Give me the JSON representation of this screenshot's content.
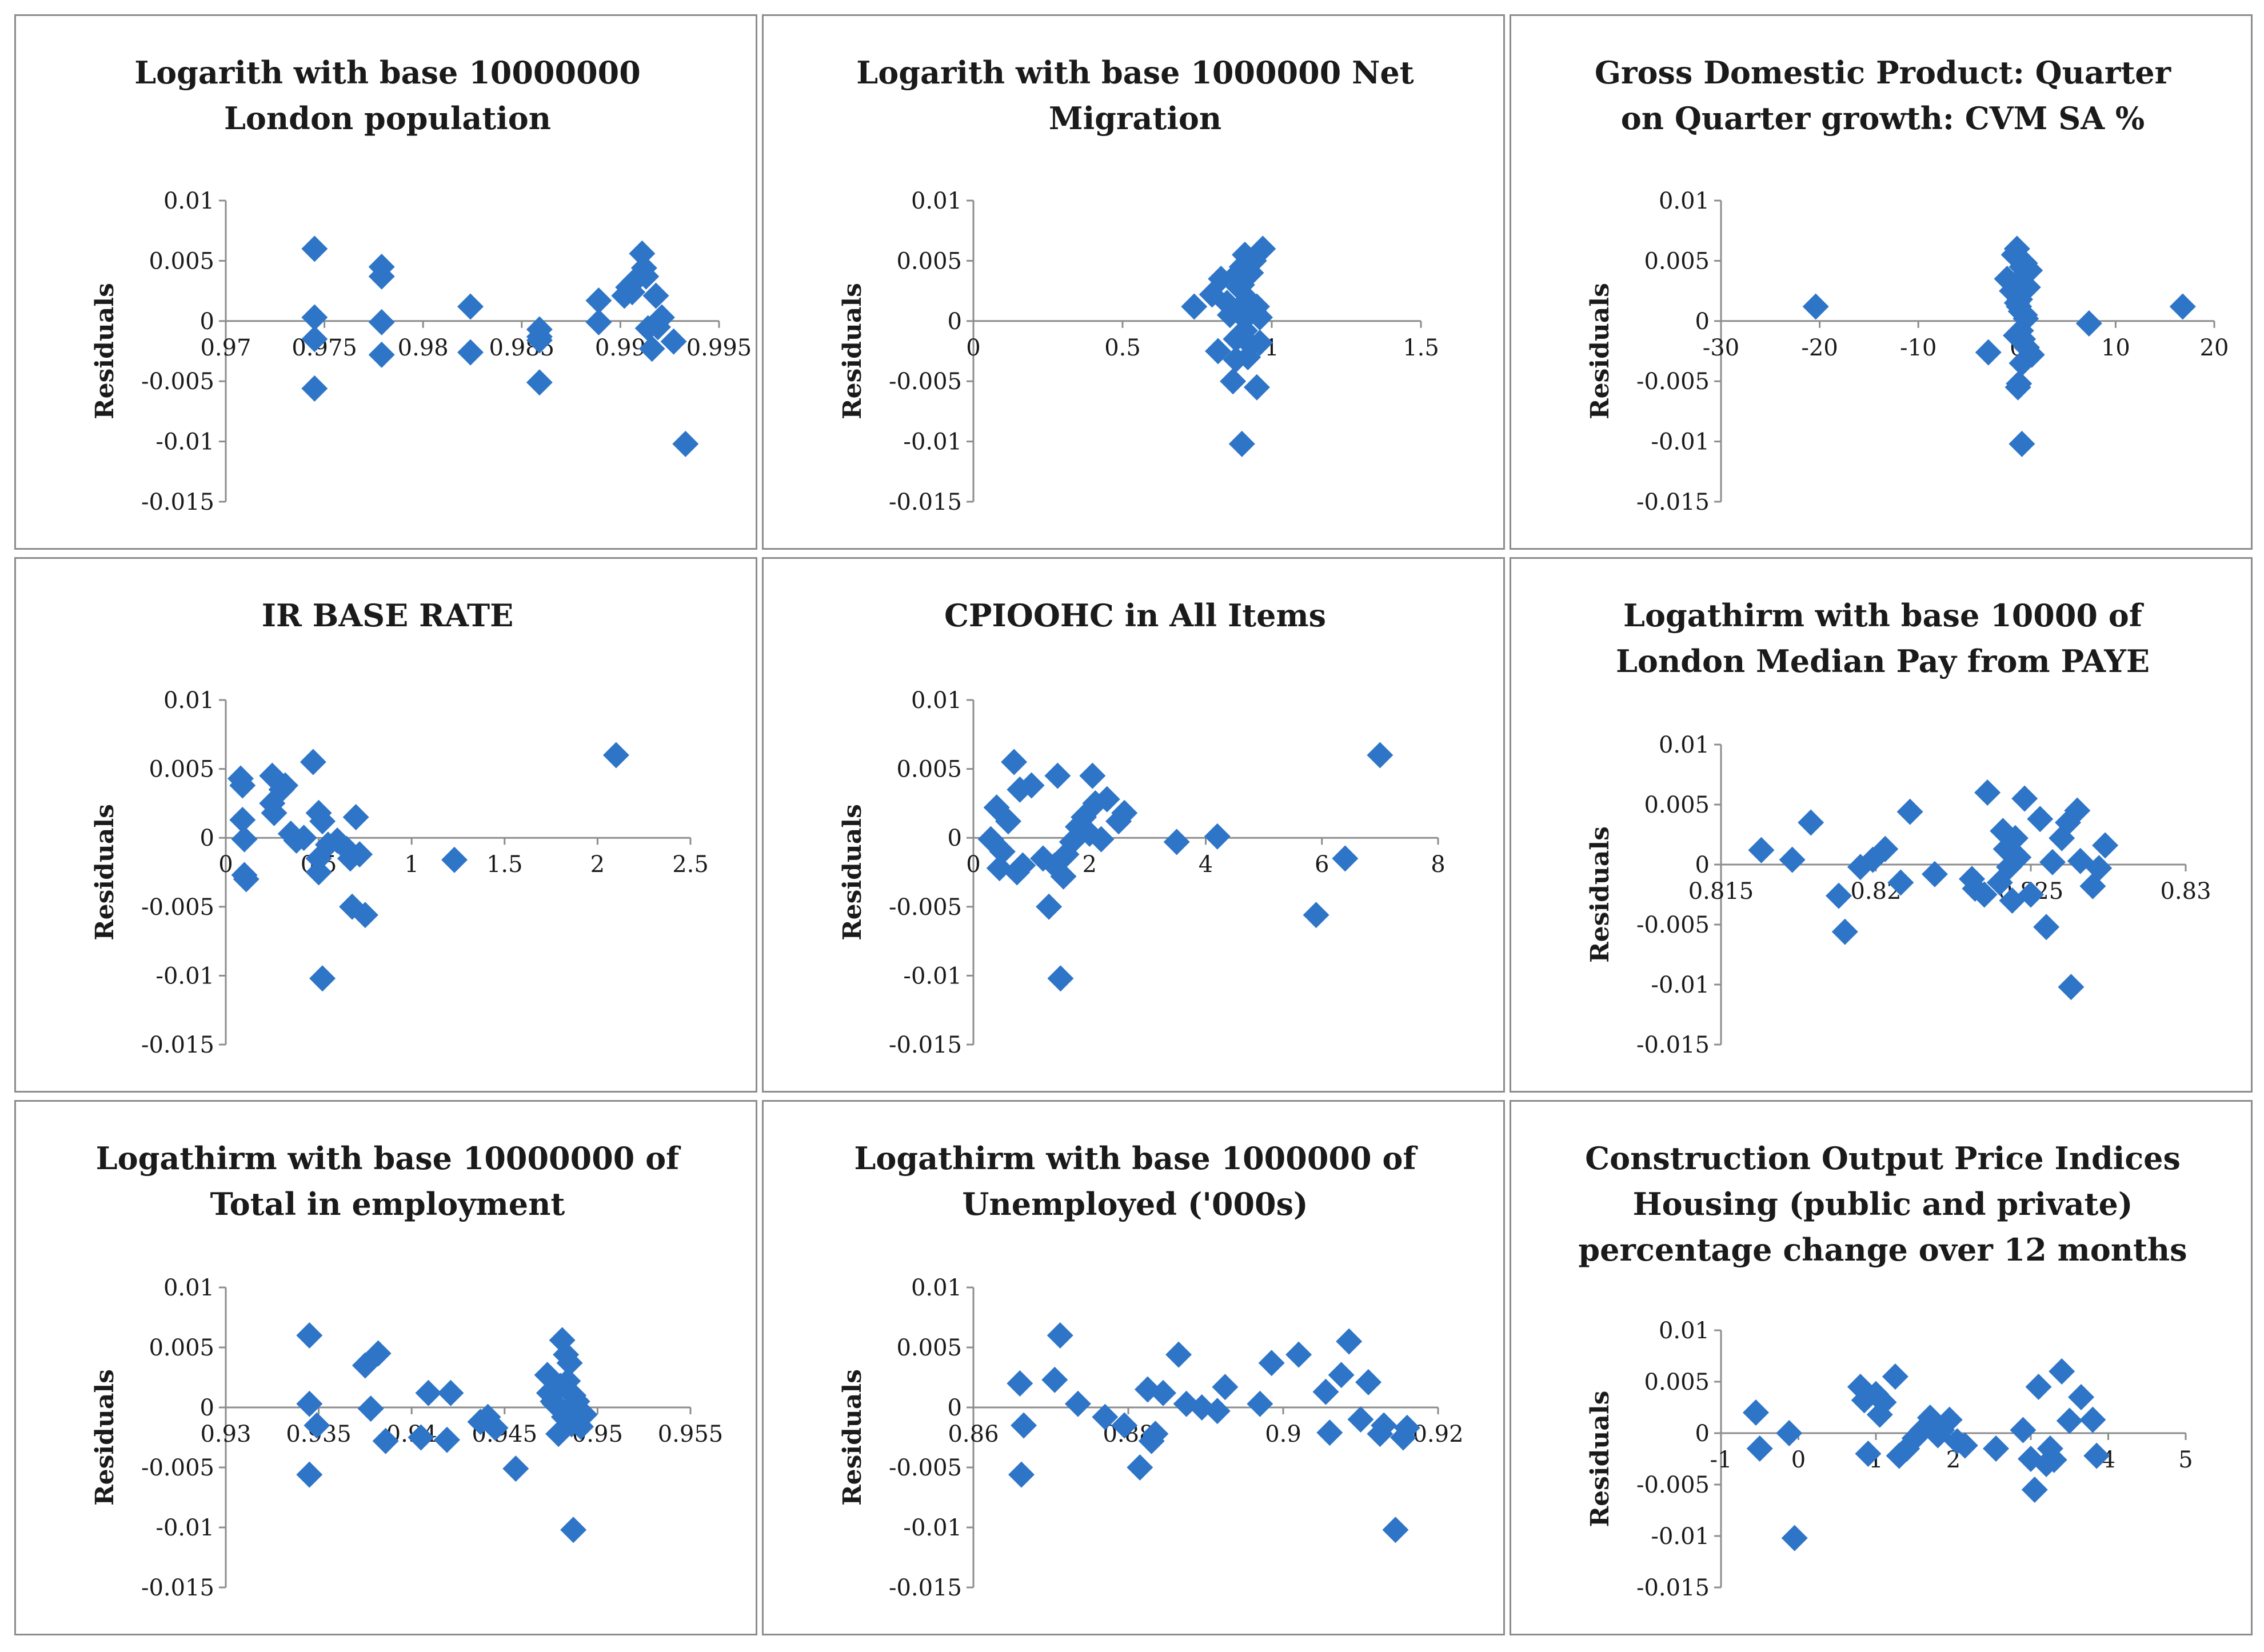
{
  "ylabel": "Residuals",
  "marker_color": "#2e75c8",
  "chart_data": [
    {
      "type": "scatter",
      "title_lines": [
        "Logarith with base 10000000",
        "London population"
      ],
      "xlim": [
        0.97,
        0.995
      ],
      "xticks": [
        0.97,
        0.975,
        0.98,
        0.985,
        0.99,
        0.995
      ],
      "xtick_labels": [
        "0.97",
        "0.975",
        "0.98",
        "0.985",
        "0.99",
        "0.995"
      ],
      "ylim": [
        -0.015,
        0.01
      ],
      "yticks": [
        0.01,
        0.005,
        0,
        -0.005,
        -0.01,
        -0.015
      ],
      "ytick_labels": [
        "0.01",
        "0.005",
        "0",
        "-0.005",
        "-0.01",
        "-0.015"
      ],
      "ylabel": "Residuals",
      "x": [
        0.9745,
        0.9745,
        0.9745,
        0.9745,
        0.9779,
        0.9779,
        0.9779,
        0.9779,
        0.9824,
        0.9824,
        0.9859,
        0.9859,
        0.9859,
        0.9859,
        0.9889,
        0.9889,
        0.9902,
        0.9904,
        0.9906,
        0.9907,
        0.9911,
        0.9912,
        0.9913,
        0.9914,
        0.9916,
        0.9918,
        0.9919,
        0.9921,
        0.9927,
        0.9933
      ],
      "y": [
        0.006,
        0.0003,
        -0.0015,
        -0.0056,
        0.0045,
        0.0037,
        -0.0001,
        -0.0028,
        0.0012,
        -0.0026,
        -0.0007,
        -0.0013,
        -0.0016,
        -0.0051,
        0.0017,
        -0.0001,
        0.0021,
        0.0028,
        0.0024,
        0.0033,
        0.0056,
        0.0044,
        0.0037,
        -0.0006,
        -0.0023,
        0.0021,
        -0.0005,
        0.0003,
        -0.0017,
        -0.0102
      ]
    },
    {
      "type": "scatter",
      "title_lines": [
        "Logarith with base 1000000 Net",
        "Migration"
      ],
      "xlim": [
        0,
        1.5
      ],
      "xticks": [
        0,
        0.5,
        1,
        1.5
      ],
      "xtick_labels": [
        "0",
        "0.5",
        "1",
        "1.5"
      ],
      "ylim": [
        -0.015,
        0.01
      ],
      "yticks": [
        0.01,
        0.005,
        0,
        -0.005,
        -0.01,
        -0.015
      ],
      "ytick_labels": [
        "0.01",
        "0.005",
        "0",
        "-0.005",
        "-0.01",
        "-0.015"
      ],
      "ylabel": "Residuals",
      "x": [
        0.74,
        0.82,
        0.83,
        0.85,
        0.86,
        0.87,
        0.88,
        0.88,
        0.89,
        0.89,
        0.9,
        0.9,
        0.9,
        0.91,
        0.91,
        0.92,
        0.92,
        0.93,
        0.93,
        0.94,
        0.94,
        0.95,
        0.95,
        0.96,
        0.96,
        0.97,
        0.88,
        0.91,
        0.8,
        0.9
      ],
      "y": [
        0.0012,
        -0.0025,
        0.0035,
        0.0015,
        0.0005,
        -0.005,
        0.0038,
        -0.0015,
        0.0028,
        0.0008,
        0.0045,
        -0.001,
        -0.0102,
        0.0055,
        0.0002,
        -0.003,
        0.0018,
        0.004,
        -0.002,
        0.005,
        0.0008,
        -0.0055,
        0.0012,
        -0.0018,
        0.0003,
        0.006,
        -0.0032,
        -0.0008,
        0.0022,
        0.003
      ]
    },
    {
      "type": "scatter",
      "title_lines": [
        "Gross Domestic Product: Quarter",
        "on Quarter growth: CVM SA %"
      ],
      "xlim": [
        -30,
        20
      ],
      "xticks": [
        -30,
        -20,
        -10,
        0,
        10,
        20
      ],
      "xtick_labels": [
        "-30",
        "-20",
        "-10",
        "0",
        "10",
        "20"
      ],
      "ylim": [
        -0.015,
        0.01
      ],
      "yticks": [
        0.01,
        0.005,
        0,
        -0.005,
        -0.01,
        -0.015
      ],
      "ytick_labels": [
        "0.01",
        "0.005",
        "0",
        "-0.005",
        "-0.01",
        "-0.015"
      ],
      "ylabel": "Residuals",
      "x": [
        -20.4,
        -2.9,
        -1.0,
        -0.5,
        -0.3,
        0.0,
        0.1,
        0.2,
        0.3,
        0.4,
        0.5,
        0.5,
        0.6,
        0.7,
        0.8,
        0.9,
        1.0,
        1.1,
        1.3,
        1.5,
        7.3,
        16.8,
        0.2,
        0.4,
        0.6,
        -0.1,
        0.3,
        0.8,
        0.5,
        0.0
      ],
      "y": [
        0.0012,
        -0.0026,
        0.0035,
        0.0025,
        0.0055,
        0.006,
        -0.0055,
        -0.0052,
        0.0018,
        0.0008,
        -0.0102,
        0.0045,
        -0.0015,
        0.0038,
        0.0048,
        0.0002,
        -0.0022,
        0.0028,
        0.0042,
        -0.0028,
        -0.0002,
        0.0012,
        0.0012,
        -0.0008,
        0.003,
        -0.0012,
        0.0022,
        0.0005,
        -0.0035,
        0.0015
      ]
    },
    {
      "type": "scatter",
      "title_lines": [
        "IR BASE RATE"
      ],
      "xlim": [
        0,
        2.5
      ],
      "xticks": [
        0,
        0.5,
        1,
        1.5,
        2,
        2.5
      ],
      "xtick_labels": [
        "0",
        "0.5",
        "1",
        "1.5",
        "2",
        "2.5"
      ],
      "ylim": [
        -0.015,
        0.01
      ],
      "yticks": [
        0.01,
        0.005,
        0,
        -0.005,
        -0.01,
        -0.015
      ],
      "ytick_labels": [
        "0.01",
        "0.005",
        "0",
        "-0.005",
        "-0.01",
        "-0.015"
      ],
      "ylabel": "Residuals",
      "x": [
        0.08,
        0.09,
        0.09,
        0.1,
        0.1,
        0.11,
        0.25,
        0.25,
        0.26,
        0.3,
        0.32,
        0.35,
        0.38,
        0.42,
        0.47,
        0.5,
        0.5,
        0.5,
        0.52,
        0.52,
        0.55,
        0.6,
        0.65,
        0.67,
        0.68,
        0.7,
        0.72,
        0.75,
        1.23,
        2.1
      ],
      "y": [
        0.0043,
        0.0038,
        0.0013,
        -0.0001,
        -0.0027,
        -0.003,
        0.0045,
        0.0025,
        0.0018,
        0.0035,
        0.0038,
        0.0003,
        -0.0002,
        0.0,
        0.0055,
        0.0018,
        -0.0015,
        -0.0025,
        -0.0102,
        0.0012,
        -0.0005,
        -0.0002,
        -0.0008,
        -0.0015,
        -0.005,
        0.0015,
        -0.0012,
        -0.0056,
        -0.0016,
        0.006
      ]
    },
    {
      "type": "scatter",
      "title_lines": [
        "CPIOOHC in All Items"
      ],
      "xlim": [
        0,
        8
      ],
      "xticks": [
        0,
        2,
        4,
        6,
        8
      ],
      "xtick_labels": [
        "0",
        "2",
        "4",
        "6",
        "8"
      ],
      "ylim": [
        -0.015,
        0.01
      ],
      "yticks": [
        0.01,
        0.005,
        0,
        -0.005,
        -0.01,
        -0.015
      ],
      "ytick_labels": [
        "0.01",
        "0.005",
        "0",
        "-0.005",
        "-0.01",
        "-0.015"
      ],
      "ylabel": "Residuals",
      "x": [
        0.3,
        0.4,
        0.45,
        0.5,
        0.6,
        0.7,
        0.75,
        0.8,
        0.85,
        1.0,
        1.2,
        1.3,
        1.4,
        1.45,
        1.5,
        1.55,
        1.6,
        1.7,
        1.8,
        1.9,
        2.0,
        2.05,
        2.1,
        2.2,
        2.3,
        2.5,
        2.6,
        3.5,
        4.2,
        5.9,
        6.4,
        7.0
      ],
      "y": [
        -0.0001,
        0.0022,
        -0.0022,
        -0.001,
        0.0012,
        0.0055,
        -0.0025,
        0.0035,
        -0.002,
        0.0038,
        -0.0015,
        -0.005,
        -0.002,
        0.0045,
        -0.0102,
        -0.0028,
        -0.0012,
        -0.0003,
        0.0008,
        0.0015,
        0.0003,
        0.0045,
        0.0025,
        -0.0001,
        0.0028,
        0.0012,
        0.0018,
        -0.0003,
        0.0001,
        -0.0056,
        -0.0015,
        0.006
      ]
    },
    {
      "type": "scatter",
      "title_lines": [
        "Logathirm with base 10000 of",
        "London Median Pay from PAYE"
      ],
      "xlim": [
        0.815,
        0.83
      ],
      "xticks": [
        0.815,
        0.82,
        0.825,
        0.83
      ],
      "xtick_labels": [
        "0.815",
        "0.82",
        "0.825",
        "0.83"
      ],
      "ylim": [
        -0.015,
        0.01
      ],
      "yticks": [
        0.01,
        0.005,
        0,
        -0.005,
        -0.01,
        -0.015
      ],
      "ytick_labels": [
        "0.01",
        "0.005",
        "0",
        "-0.005",
        "-0.01",
        "-0.015"
      ],
      "ylabel": "Residuals",
      "x": [
        0.8163,
        0.8173,
        0.8179,
        0.8188,
        0.819,
        0.8195,
        0.8199,
        0.8203,
        0.8208,
        0.8211,
        0.8219,
        0.8231,
        0.8232,
        0.8235,
        0.8236,
        0.824,
        0.8241,
        0.8242,
        0.8243,
        0.8244,
        0.8245,
        0.8246,
        0.8248,
        0.825,
        0.8253,
        0.8255,
        0.8257,
        0.826,
        0.8262,
        0.8263,
        0.8265,
        0.8266,
        0.827,
        0.8272,
        0.8274
      ],
      "y": [
        0.0012,
        0.0004,
        0.0035,
        -0.0026,
        -0.0056,
        -0.0002,
        0.0004,
        0.0013,
        -0.0015,
        0.0044,
        -0.0008,
        -0.0012,
        -0.002,
        -0.0025,
        0.006,
        -0.0015,
        0.0028,
        0.0013,
        -0.0002,
        -0.003,
        0.0022,
        0.0006,
        0.0055,
        -0.0025,
        0.0038,
        -0.0052,
        0.0002,
        0.0022,
        0.0035,
        -0.0102,
        0.0045,
        0.0003,
        -0.0018,
        -0.0003,
        0.0016
      ]
    },
    {
      "type": "scatter",
      "title_lines": [
        "Logathirm with base 10000000 of",
        "Total in   employment"
      ],
      "xlim": [
        0.93,
        0.955
      ],
      "xticks": [
        0.93,
        0.935,
        0.94,
        0.945,
        0.95,
        0.955
      ],
      "xtick_labels": [
        "0.93",
        "0.935",
        "0.94",
        "0.945",
        "0.95",
        "0.955"
      ],
      "ylim": [
        -0.015,
        0.01
      ],
      "yticks": [
        0.01,
        0.005,
        0,
        -0.005,
        -0.01,
        -0.015
      ],
      "ytick_labels": [
        "0.01",
        "0.005",
        "0",
        "-0.005",
        "-0.01",
        "-0.015"
      ],
      "ylabel": "Residuals",
      "x": [
        0.9345,
        0.9345,
        0.9345,
        0.9349,
        0.9375,
        0.9378,
        0.9382,
        0.9386,
        0.9405,
        0.9409,
        0.9419,
        0.9421,
        0.9437,
        0.9441,
        0.9445,
        0.9456,
        0.9473,
        0.9474,
        0.9477,
        0.9479,
        0.948,
        0.9481,
        0.9482,
        0.9483,
        0.9484,
        0.9485,
        0.9486,
        0.9487,
        0.9489,
        0.9491,
        0.9493,
        0.9487,
        0.9484,
        0.9476
      ],
      "y": [
        0.006,
        0.0003,
        -0.0056,
        -0.0015,
        0.0035,
        -0.0001,
        0.0045,
        -0.0028,
        -0.0025,
        0.0012,
        -0.0027,
        0.0012,
        -0.0012,
        -0.0008,
        -0.0017,
        -0.0051,
        0.0027,
        0.0012,
        0.0003,
        -0.0022,
        0.0018,
        0.0056,
        -0.0008,
        0.0044,
        0.0022,
        0.0037,
        -0.0014,
        -0.0102,
        0.0005,
        -0.0016,
        -0.0006,
        0.001,
        -0.0003,
        0.0005
      ]
    },
    {
      "type": "scatter",
      "title_lines": [
        "Logathirm with base 1000000 of",
        "Unemployed ('000s)"
      ],
      "xlim": [
        0.86,
        0.92
      ],
      "xticks": [
        0.86,
        0.88,
        0.9,
        0.92
      ],
      "xtick_labels": [
        "0.86",
        "0.88",
        "0.9",
        "0.92"
      ],
      "ylim": [
        -0.015,
        0.01
      ],
      "yticks": [
        0.01,
        0.005,
        0,
        -0.005,
        -0.01,
        -0.015
      ],
      "ytick_labels": [
        "0.01",
        "0.005",
        "0",
        "-0.005",
        "-0.01",
        "-0.015"
      ],
      "ylabel": "Residuals",
      "x": [
        0.866,
        0.8662,
        0.8665,
        0.8705,
        0.8712,
        0.8735,
        0.877,
        0.8795,
        0.8815,
        0.8825,
        0.883,
        0.8835,
        0.8845,
        0.8865,
        0.8875,
        0.8895,
        0.8915,
        0.8925,
        0.897,
        0.8985,
        0.902,
        0.9055,
        0.906,
        0.9075,
        0.9085,
        0.91,
        0.911,
        0.9125,
        0.913,
        0.9145,
        0.9155,
        0.916
      ],
      "y": [
        0.002,
        -0.0056,
        -0.0015,
        0.0023,
        0.006,
        0.0003,
        -0.0008,
        -0.0015,
        -0.005,
        0.0015,
        -0.0028,
        -0.0022,
        0.0012,
        0.0044,
        0.0003,
        0.0,
        -0.0003,
        0.0017,
        0.0003,
        0.0037,
        0.0044,
        0.0013,
        -0.0021,
        0.0027,
        0.0055,
        -0.001,
        0.0021,
        -0.0022,
        -0.0015,
        -0.0102,
        -0.0025,
        -0.0017
      ]
    },
    {
      "type": "scatter",
      "title_lines": [
        "Construction Output Price Indices",
        "Housing (public and private)",
        "percentage change over 12 months"
      ],
      "xlim": [
        -1,
        5
      ],
      "xticks": [
        -1,
        0,
        1,
        2,
        3,
        4,
        5
      ],
      "xtick_labels": [
        "-1",
        "0",
        "1",
        "2",
        "3",
        "4",
        "5"
      ],
      "ylim": [
        -0.015,
        0.01
      ],
      "yticks": [
        0.01,
        0.005,
        0,
        -0.005,
        -0.01,
        -0.015
      ],
      "ytick_labels": [
        "0.01",
        "0.005",
        "0",
        "-0.005",
        "-0.01",
        "-0.015"
      ],
      "ylabel": "Residuals",
      "x": [
        -0.55,
        -0.5,
        -0.12,
        -0.05,
        0.8,
        0.85,
        0.9,
        1.0,
        1.05,
        1.1,
        1.25,
        1.3,
        1.4,
        1.5,
        1.6,
        1.7,
        1.8,
        1.85,
        1.95,
        2.05,
        2.15,
        2.55,
        2.9,
        3.0,
        3.05,
        3.1,
        3.2,
        3.25,
        3.3,
        3.4,
        3.5,
        3.65,
        3.8,
        3.85
      ],
      "y": [
        0.002,
        -0.0015,
        0.0,
        -0.0102,
        0.0045,
        0.0032,
        -0.002,
        0.0038,
        0.0018,
        0.003,
        0.0055,
        -0.0022,
        -0.0015,
        -0.0005,
        0.0003,
        0.0015,
        -0.0002,
        0.0003,
        0.0013,
        -0.0008,
        -0.0012,
        -0.0015,
        0.0003,
        -0.0025,
        -0.0055,
        0.0045,
        -0.003,
        -0.0015,
        -0.0026,
        0.006,
        0.0012,
        0.0035,
        0.0013,
        -0.0022
      ]
    }
  ]
}
